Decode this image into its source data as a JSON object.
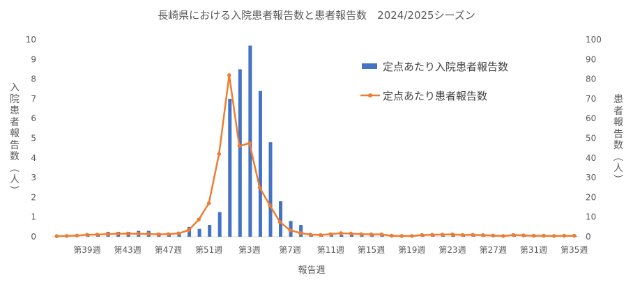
{
  "chart_data": {
    "type": "bar+line",
    "title": "長崎県における入院患者報告数と患者報告数　2024/2025シーズン",
    "xlabel": "報告週",
    "ylabel_left": "入院患者報告数（人）",
    "ylabel_right": "患者報告数（人）",
    "ylim_left": [
      0,
      10
    ],
    "ylim_right": [
      0,
      100
    ],
    "yticks_left": [
      "0",
      "1",
      "2",
      "3",
      "4",
      "5",
      "6",
      "7",
      "8",
      "9",
      "10"
    ],
    "yticks_right": [
      "0",
      "10",
      "20",
      "30",
      "40",
      "50",
      "60",
      "70",
      "80",
      "90",
      "100"
    ],
    "grid": false,
    "legend_position": "top-right",
    "colors": {
      "bar": "#4472C4",
      "line": "#ED7D31"
    },
    "categories": [
      "第36週",
      "第37週",
      "第38週",
      "第39週",
      "第40週",
      "第41週",
      "第42週",
      "第43週",
      "第44週",
      "第45週",
      "第46週",
      "第47週",
      "第48週",
      "第49週",
      "第50週",
      "第51週",
      "第52週",
      "第1週",
      "第2週",
      "第3週",
      "第4週",
      "第5週",
      "第6週",
      "第7週",
      "第8週",
      "第9週",
      "第10週",
      "第11週",
      "第12週",
      "第13週",
      "第14週",
      "第15週",
      "第16週",
      "第17週",
      "第18週",
      "第19週",
      "第20週",
      "第21週",
      "第22週",
      "第23週",
      "第24週",
      "第25週",
      "第26週",
      "第27週",
      "第28週",
      "第29週",
      "第30週",
      "第31週",
      "第32週",
      "第33週",
      "第34週",
      "第35週"
    ],
    "x_tick_labels": [
      "第39週",
      "第43週",
      "第47週",
      "第51週",
      "第3週",
      "第7週",
      "第11週",
      "第15週",
      "第19週",
      "第23週",
      "第27週",
      "第31週",
      "第35週"
    ],
    "series": [
      {
        "name": "定点あたり入院患者報告数",
        "kind": "bar",
        "axis": "left",
        "values": [
          0,
          0,
          0,
          0.1,
          0.1,
          0.25,
          0.25,
          0.25,
          0.3,
          0.3,
          0.2,
          0.1,
          0.2,
          0.5,
          0.4,
          0.6,
          1.25,
          7.0,
          8.5,
          9.7,
          7.4,
          4.8,
          1.8,
          0.8,
          0.6,
          0.1,
          0.1,
          0.1,
          0.1,
          0.1,
          0.1,
          0.1,
          0.1,
          0.1,
          0.05,
          0.05,
          0.05,
          0.05,
          0.05,
          0.1,
          0.05,
          0.05,
          0.05,
          0.1,
          0.05,
          0.05,
          0.05,
          0.1,
          0.05,
          0.05,
          0.05,
          0.05
        ]
      },
      {
        "name": "定点あたり患者報告数",
        "kind": "line",
        "axis": "right",
        "values": [
          0.3,
          0.4,
          0.6,
          1.0,
          1.1,
          1.3,
          1.5,
          1.6,
          1.5,
          1.4,
          1.2,
          1.3,
          1.7,
          3.3,
          8.7,
          17.0,
          42.0,
          82.0,
          46.0,
          47.5,
          25.0,
          16.0,
          7.5,
          3.3,
          1.9,
          1.1,
          0.9,
          1.3,
          1.8,
          1.6,
          1.3,
          1.2,
          1.2,
          0.5,
          0.4,
          0.4,
          0.9,
          1.0,
          1.1,
          1.2,
          0.9,
          1.0,
          0.8,
          0.6,
          0.4,
          0.9,
          0.7,
          0.5,
          0.5,
          0.4,
          0.5,
          0.5
        ]
      }
    ]
  }
}
